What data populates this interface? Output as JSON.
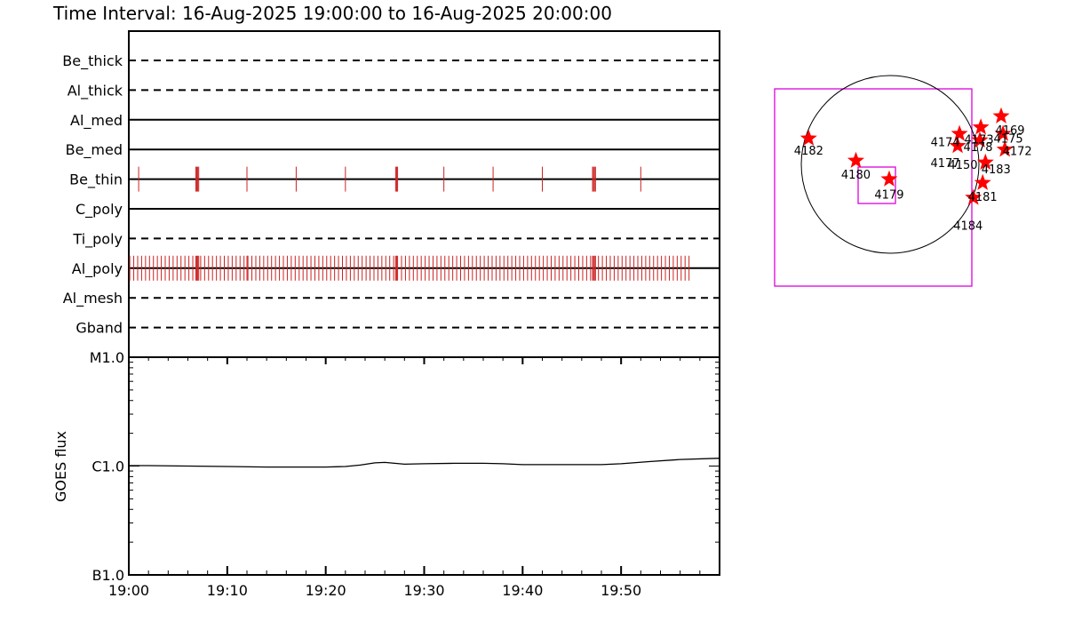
{
  "title": "Time Interval: 16-Aug-2025 19:00:00 to 16-Aug-2025 20:00:00",
  "colors": {
    "event_ticks": "#cc2222",
    "box": "#dd00dd",
    "star": "#ff0000",
    "line": "#000000"
  },
  "chart_data": [
    {
      "type": "timeline",
      "x_range": [
        "19:00",
        "20:00"
      ],
      "x_units": "minutes after 19:00",
      "x_ticks": [
        "19:00",
        "19:10",
        "19:20",
        "19:30",
        "19:40",
        "19:50"
      ],
      "rows": [
        {
          "name": "Be_thick",
          "style": "dashed",
          "events": []
        },
        {
          "name": "Al_thick",
          "style": "dashed",
          "events": []
        },
        {
          "name": "Al_med",
          "style": "solid",
          "events": []
        },
        {
          "name": "Be_med",
          "style": "solid",
          "events": []
        },
        {
          "name": "Be_thin",
          "style": "solid",
          "events": [
            1.0,
            6.8,
            6.9,
            7.0,
            7.1,
            12.0,
            17.0,
            22.0,
            27.1,
            27.2,
            27.3,
            32.0,
            37.0,
            42.0,
            47.1,
            47.2,
            47.3,
            47.4,
            52.0
          ]
        },
        {
          "name": "C_poly",
          "style": "solid",
          "events": []
        },
        {
          "name": "Ti_poly",
          "style": "dashed",
          "events": []
        },
        {
          "name": "Al_poly",
          "style": "solid",
          "events": [
            0.1,
            0.5,
            0.9,
            1.3,
            1.7,
            2.1,
            2.5,
            2.9,
            3.3,
            3.7,
            4.1,
            4.5,
            4.9,
            5.3,
            5.7,
            6.1,
            6.5,
            6.8,
            6.9,
            7.0,
            7.1,
            7.3,
            7.7,
            8.1,
            8.5,
            8.9,
            9.3,
            9.7,
            10.1,
            10.5,
            10.9,
            11.3,
            11.7,
            12.0,
            12.1,
            12.5,
            12.9,
            13.3,
            13.7,
            14.1,
            14.5,
            14.9,
            15.3,
            15.7,
            16.1,
            16.5,
            16.9,
            17.3,
            17.7,
            18.1,
            18.5,
            18.9,
            19.3,
            19.7,
            20.1,
            20.5,
            20.9,
            21.3,
            21.7,
            22.1,
            22.5,
            22.9,
            23.3,
            23.7,
            24.1,
            24.5,
            24.9,
            25.3,
            25.7,
            26.1,
            26.5,
            26.9,
            27.1,
            27.2,
            27.3,
            27.7,
            28.1,
            28.5,
            28.9,
            29.3,
            29.7,
            30.1,
            30.5,
            30.9,
            31.3,
            31.7,
            32.1,
            32.5,
            32.9,
            33.3,
            33.7,
            34.1,
            34.5,
            34.9,
            35.3,
            35.7,
            36.1,
            36.5,
            36.9,
            37.3,
            37.7,
            38.1,
            38.5,
            38.9,
            39.3,
            39.7,
            40.1,
            40.5,
            40.9,
            41.3,
            41.7,
            42.1,
            42.5,
            42.9,
            43.3,
            43.7,
            44.1,
            44.5,
            44.9,
            45.3,
            45.7,
            46.1,
            46.5,
            46.9,
            47.1,
            47.2,
            47.3,
            47.4,
            47.7,
            48.1,
            48.5,
            48.9,
            49.3,
            49.7,
            50.1,
            50.5,
            50.9,
            51.3,
            51.7,
            52.1,
            52.5,
            52.9,
            53.3,
            53.7,
            54.1,
            54.5,
            54.9,
            55.3,
            55.7,
            56.1,
            56.5,
            56.9
          ]
        },
        {
          "name": "Al_mesh",
          "style": "dashed",
          "events": []
        },
        {
          "name": "Gband",
          "style": "dashed",
          "events": []
        }
      ]
    },
    {
      "type": "line",
      "ylabel": "GOES flux",
      "y_scale": "log",
      "y_ticks": [
        {
          "label": "B1.0",
          "value": 1e-07
        },
        {
          "label": "C1.0",
          "value": 1e-06
        },
        {
          "label": "M1.0",
          "value": 1e-05
        }
      ],
      "ylim": [
        1e-07,
        1e-05
      ],
      "x_range": [
        "19:00",
        "20:00"
      ],
      "x_ticks": [
        "19:00",
        "19:10",
        "19:20",
        "19:30",
        "19:40",
        "19:50"
      ],
      "series": [
        {
          "x": [
            0,
            2,
            6,
            10,
            14,
            18,
            20,
            22,
            23.5,
            25,
            26,
            27,
            28,
            30,
            33,
            36,
            38,
            40,
            44,
            48,
            50,
            53,
            56,
            60
          ],
          "y": [
            1.01e-06,
            1.01e-06,
            1e-06,
            9.9e-07,
            9.8e-07,
            9.8e-07,
            9.8e-07,
            9.9e-07,
            1.02e-06,
            1.07e-06,
            1.08e-06,
            1.06e-06,
            1.04e-06,
            1.05e-06,
            1.06e-06,
            1.06e-06,
            1.05e-06,
            1.03e-06,
            1.03e-06,
            1.03e-06,
            1.05e-06,
            1.1e-06,
            1.15e-06,
            1.18e-06
          ]
        }
      ]
    },
    {
      "type": "scatter",
      "description_free": true,
      "points": [
        {
          "label": "4182",
          "x": -880,
          "y": 280
        },
        {
          "label": "4180",
          "x": -370,
          "y": 40
        },
        {
          "label": "4179",
          "x": -10,
          "y": -160
        },
        {
          "label": "4181",
          "x": 1000,
          "y": -200
        },
        {
          "label": "4184",
          "x": 900,
          "y": -360
        },
        {
          "label": "4183",
          "x": 1030,
          "y": 20
        },
        {
          "label": "4172",
          "x": 1240,
          "y": 160
        },
        {
          "label": "4177",
          "x": 730,
          "y": 200
        },
        {
          "label": "4174",
          "x": 750,
          "y": 330
        },
        {
          "label": "4178",
          "x": 970,
          "y": 260
        },
        {
          "label": "4175",
          "x": 1220,
          "y": 330
        },
        {
          "label": "4173",
          "x": 980,
          "y": 400
        },
        {
          "label": "4169",
          "x": 1200,
          "y": 520
        }
      ],
      "point_labels": [
        {
          "text": "4182"
        },
        {
          "text": "4180"
        },
        {
          "text": "4179"
        },
        {
          "text": "4181"
        },
        {
          "text": "4184"
        },
        {
          "text": "4183"
        },
        {
          "text": "4172"
        },
        {
          "text": "4177"
        },
        {
          "text": "4150"
        },
        {
          "text": "4174"
        },
        {
          "text": "4178"
        },
        {
          "text": "4175"
        },
        {
          "text": "4173"
        },
        {
          "text": "4169"
        }
      ]
    }
  ]
}
